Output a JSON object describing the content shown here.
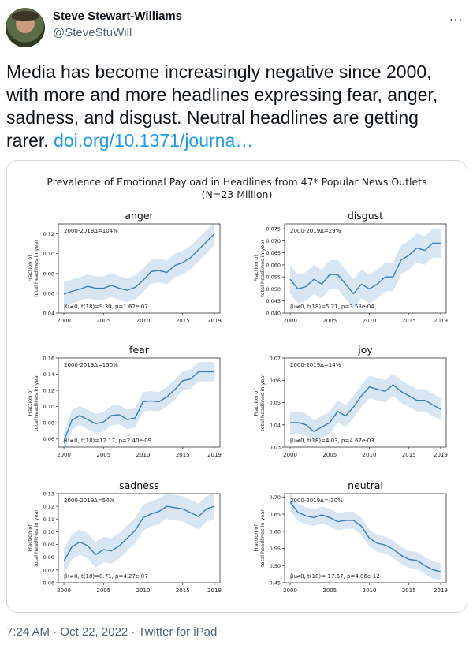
{
  "author": {
    "name": "Steve Stewart-Williams",
    "handle": "@SteveStuWill"
  },
  "more_icon": "…",
  "tweet": {
    "text": "Media has become increasingly negative since 2000, with more and more headlines expressing fear, anger, sadness, and disgust. Neutral headlines are getting rarer. ",
    "link": "doi.org/10.1371/journa…"
  },
  "figure": {
    "title": "Prevalence of Emotional Payload in Headlines from 47* Popular News Outlets",
    "subtitle": "(N=23 Million)"
  },
  "colors": {
    "line": "#3b7fb3",
    "band": "#d8e6f3",
    "link": "#1d9bf0"
  },
  "chart_data": [
    {
      "type": "line",
      "title": "anger",
      "ylabel": "Fraction of total headlines in year",
      "annotation": "2000-2019Δ=104%",
      "stat": "β₁≠0, t(18)=9.30, p=1.62e-07",
      "x": [
        2000,
        2001,
        2002,
        2003,
        2004,
        2005,
        2006,
        2007,
        2008,
        2009,
        2010,
        2011,
        2012,
        2013,
        2014,
        2015,
        2016,
        2017,
        2018,
        2019
      ],
      "values": [
        0.059,
        0.062,
        0.064,
        0.067,
        0.065,
        0.065,
        0.068,
        0.065,
        0.063,
        0.066,
        0.073,
        0.082,
        0.083,
        0.081,
        0.088,
        0.091,
        0.096,
        0.104,
        0.112,
        0.12
      ],
      "band": [
        0.012,
        0.012,
        0.012,
        0.012,
        0.012,
        0.012,
        0.012,
        0.012,
        0.012,
        0.012,
        0.012,
        0.012,
        0.012,
        0.012,
        0.012,
        0.012,
        0.012,
        0.012,
        0.012,
        0.012
      ],
      "ylim": [
        0.04,
        0.13
      ],
      "yticks": [
        0.04,
        0.06,
        0.08,
        0.1,
        0.12
      ],
      "ytick_labels": [
        "0.04",
        "0.06",
        "0.08",
        "0.10",
        "0.12"
      ],
      "xticks": [
        2000,
        2005,
        2010,
        2015,
        2019
      ]
    },
    {
      "type": "line",
      "title": "disgust",
      "ylabel": "Fraction of total headlines in year",
      "annotation": "2000-2019Δ=29%",
      "stat": "β₁≠0, t(18)=5.21, p=3.53e-04",
      "x": [
        2000,
        2001,
        2002,
        2003,
        2004,
        2005,
        2006,
        2007,
        2008,
        2009,
        2010,
        2011,
        2012,
        2013,
        2014,
        2015,
        2016,
        2017,
        2018,
        2019
      ],
      "values": [
        0.054,
        0.05,
        0.051,
        0.054,
        0.052,
        0.056,
        0.056,
        0.052,
        0.048,
        0.052,
        0.05,
        0.052,
        0.055,
        0.055,
        0.062,
        0.064,
        0.067,
        0.066,
        0.069,
        0.069
      ],
      "band": [
        0.006,
        0.006,
        0.006,
        0.006,
        0.006,
        0.006,
        0.006,
        0.006,
        0.006,
        0.006,
        0.006,
        0.006,
        0.006,
        0.006,
        0.006,
        0.006,
        0.006,
        0.006,
        0.006,
        0.006
      ],
      "ylim": [
        0.04,
        0.077
      ],
      "yticks": [
        0.04,
        0.045,
        0.05,
        0.055,
        0.06,
        0.065,
        0.07,
        0.075
      ],
      "ytick_labels": [
        "0.040",
        "0.045",
        "0.050",
        "0.055",
        "0.060",
        "0.065",
        "0.070",
        "0.075"
      ],
      "xticks": [
        2000,
        2005,
        2010,
        2015,
        2019
      ]
    },
    {
      "type": "line",
      "title": "fear",
      "ylabel": "Fraction of total headlines in year",
      "annotation": "2000-2019Δ=150%",
      "stat": "β₁≠0, t(18)=12.17, p=2.40e-09",
      "x": [
        2000,
        2001,
        2002,
        2003,
        2004,
        2005,
        2006,
        2007,
        2008,
        2009,
        2010,
        2011,
        2012,
        2013,
        2014,
        2015,
        2016,
        2017,
        2018,
        2019
      ],
      "values": [
        0.057,
        0.083,
        0.089,
        0.084,
        0.079,
        0.081,
        0.089,
        0.09,
        0.084,
        0.086,
        0.106,
        0.107,
        0.106,
        0.112,
        0.121,
        0.132,
        0.134,
        0.143,
        0.143,
        0.143
      ],
      "band": [
        0.012,
        0.012,
        0.012,
        0.012,
        0.012,
        0.012,
        0.012,
        0.012,
        0.012,
        0.012,
        0.012,
        0.012,
        0.012,
        0.012,
        0.012,
        0.012,
        0.012,
        0.012,
        0.012,
        0.012
      ],
      "ylim": [
        0.05,
        0.16
      ],
      "yticks": [
        0.06,
        0.08,
        0.1,
        0.12,
        0.14,
        0.16
      ],
      "ytick_labels": [
        "0.06",
        "0.08",
        "0.10",
        "0.12",
        "0.14",
        "0.16"
      ],
      "xticks": [
        2000,
        2005,
        2010,
        2015,
        2019
      ]
    },
    {
      "type": "line",
      "title": "joy",
      "ylabel": "Fraction of total headlines in year",
      "annotation": "2000-2019Δ=14%",
      "stat": "β₁≠0, t(18)=4.03, p=4.67e-03",
      "x": [
        2000,
        2001,
        2002,
        2003,
        2004,
        2005,
        2006,
        2007,
        2008,
        2009,
        2010,
        2011,
        2012,
        2013,
        2014,
        2015,
        2016,
        2017,
        2018,
        2019
      ],
      "values": [
        0.041,
        0.041,
        0.04,
        0.037,
        0.039,
        0.041,
        0.046,
        0.044,
        0.048,
        0.053,
        0.057,
        0.056,
        0.055,
        0.058,
        0.055,
        0.053,
        0.051,
        0.051,
        0.049,
        0.047
      ],
      "band": [
        0.005,
        0.005,
        0.005,
        0.005,
        0.005,
        0.005,
        0.005,
        0.005,
        0.005,
        0.005,
        0.005,
        0.005,
        0.005,
        0.005,
        0.005,
        0.005,
        0.005,
        0.005,
        0.005,
        0.005
      ],
      "ylim": [
        0.03,
        0.07
      ],
      "yticks": [
        0.03,
        0.04,
        0.05,
        0.06,
        0.07
      ],
      "ytick_labels": [
        "0.03",
        "0.04",
        "0.05",
        "0.06",
        "0.07"
      ],
      "xticks": [
        2000,
        2005,
        2010,
        2015,
        2019
      ]
    },
    {
      "type": "line",
      "title": "sadness",
      "ylabel": "Fraction of total headlines in year",
      "annotation": "2000-2019Δ=54%",
      "stat": "β₁≠0, t(18)=8.71, p=4.27e-07",
      "x": [
        2000,
        2001,
        2002,
        2003,
        2004,
        2005,
        2006,
        2007,
        2008,
        2009,
        2010,
        2011,
        2012,
        2013,
        2014,
        2015,
        2016,
        2017,
        2018,
        2019
      ],
      "values": [
        0.077,
        0.088,
        0.092,
        0.089,
        0.082,
        0.086,
        0.085,
        0.089,
        0.095,
        0.101,
        0.111,
        0.114,
        0.116,
        0.12,
        0.119,
        0.118,
        0.115,
        0.112,
        0.118,
        0.12
      ],
      "band": [
        0.01,
        0.01,
        0.01,
        0.01,
        0.01,
        0.01,
        0.01,
        0.01,
        0.01,
        0.01,
        0.01,
        0.01,
        0.01,
        0.01,
        0.01,
        0.01,
        0.01,
        0.01,
        0.01,
        0.01
      ],
      "ylim": [
        0.06,
        0.13
      ],
      "yticks": [
        0.06,
        0.07,
        0.08,
        0.09,
        0.1,
        0.11,
        0.12,
        0.13
      ],
      "ytick_labels": [
        "0.06",
        "0.07",
        "0.08",
        "0.09",
        "0.10",
        "0.11",
        "0.12",
        "0.13"
      ],
      "xticks": [
        2000,
        2005,
        2010,
        2015,
        2019
      ]
    },
    {
      "type": "line",
      "title": "neutral",
      "ylabel": "Fraction of total headlines in year",
      "annotation": "2000-2019Δ=-30%",
      "stat": "β₁≠0, t(18)=-17.67, p=4.86e-12",
      "x": [
        2000,
        2001,
        2002,
        2003,
        2004,
        2005,
        2006,
        2007,
        2008,
        2009,
        2010,
        2011,
        2012,
        2013,
        2014,
        2015,
        2016,
        2017,
        2018,
        2019
      ],
      "values": [
        0.685,
        0.655,
        0.645,
        0.64,
        0.648,
        0.64,
        0.628,
        0.632,
        0.632,
        0.615,
        0.58,
        0.565,
        0.56,
        0.548,
        0.53,
        0.518,
        0.515,
        0.5,
        0.488,
        0.482
      ],
      "band": [
        0.025,
        0.025,
        0.025,
        0.025,
        0.025,
        0.025,
        0.025,
        0.025,
        0.025,
        0.025,
        0.025,
        0.025,
        0.025,
        0.025,
        0.025,
        0.025,
        0.025,
        0.025,
        0.025,
        0.025
      ],
      "ylim": [
        0.45,
        0.71
      ],
      "yticks": [
        0.45,
        0.5,
        0.55,
        0.6,
        0.65,
        0.7
      ],
      "ytick_labels": [
        "0.45",
        "0.50",
        "0.55",
        "0.60",
        "0.65",
        "0.70"
      ],
      "xticks": [
        2000,
        2005,
        2010,
        2015,
        2019
      ]
    }
  ],
  "footer": {
    "text": "7:24 AM · Oct 22, 2022 · Twitter for iPad"
  }
}
